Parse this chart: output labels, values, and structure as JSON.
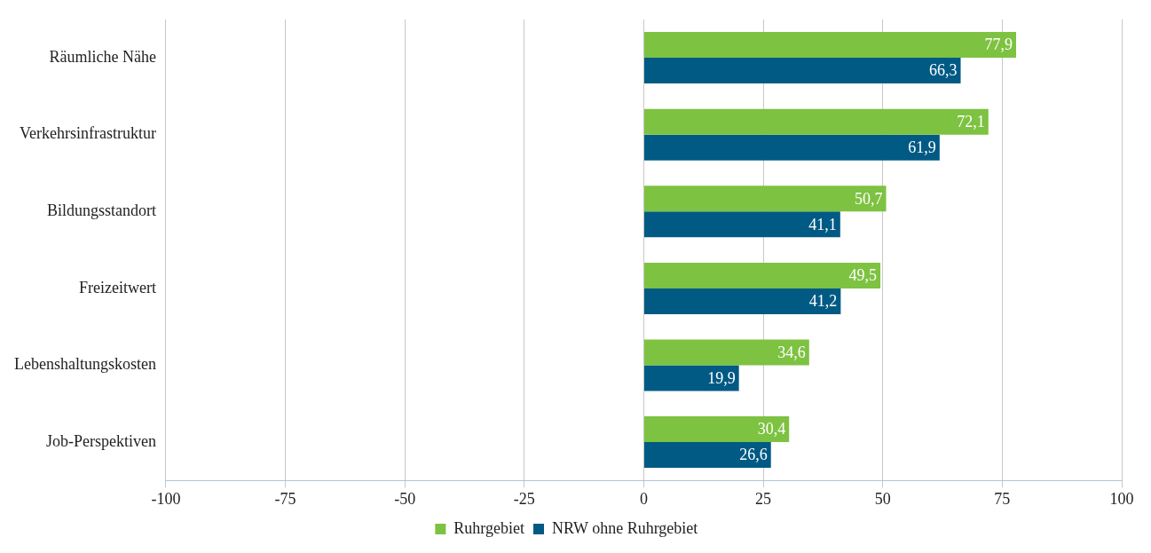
{
  "chart_data": {
    "type": "bar",
    "orientation": "horizontal",
    "categories": [
      "Räumliche Nähe",
      "Verkehrsinfrastruktur",
      "Bildungsstandort",
      "Freizeitwert",
      "Lebenshaltungskosten",
      "Job-Perspektiven"
    ],
    "series": [
      {
        "name": "Ruhrgebiet",
        "color": "#7dc241",
        "values": [
          77.9,
          72.1,
          50.7,
          49.5,
          34.6,
          30.4
        ],
        "value_labels": [
          "77,9",
          "72,1",
          "50,7",
          "49,5",
          "34,6",
          "30,4"
        ]
      },
      {
        "name": "NRW ohne Ruhrgebiet",
        "color": "#005a84",
        "values": [
          66.3,
          61.9,
          41.1,
          41.2,
          19.9,
          26.6
        ],
        "value_labels": [
          "66,3",
          "61,9",
          "41,1",
          "41,2",
          "19,9",
          "26,6"
        ]
      }
    ],
    "xlim": [
      -100,
      100
    ],
    "xticks": [
      -100,
      -75,
      -50,
      -25,
      0,
      25,
      50,
      75,
      100
    ],
    "grid": "x",
    "legend": "bottom"
  }
}
